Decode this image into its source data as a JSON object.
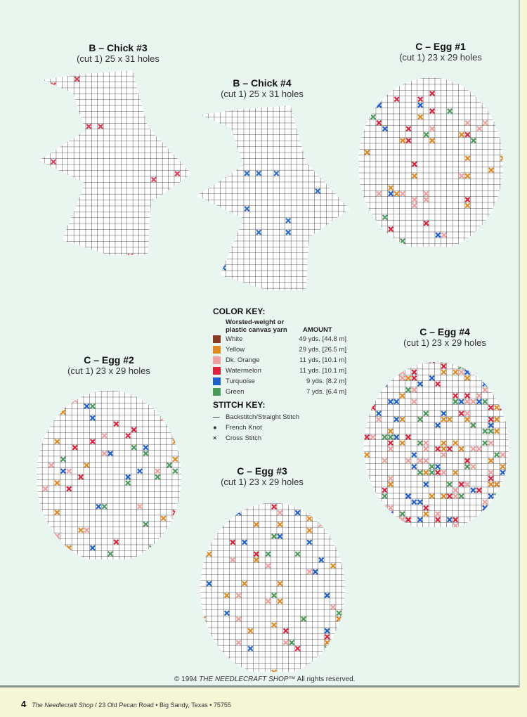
{
  "patterns": [
    {
      "id": "chick3",
      "title": "B – Chick #3",
      "subtitle": "(cut 1) 25 x 31 holes",
      "shape": "chick",
      "accent": "#e0405a"
    },
    {
      "id": "chick4",
      "title": "B – Chick #4",
      "subtitle": "(cut 1) 25 x 31 holes",
      "shape": "chick",
      "accent": "#2a6fc9"
    },
    {
      "id": "egg1",
      "title": "C – Egg #1",
      "subtitle": "(cut 1) 23 x 29 holes",
      "shape": "egg"
    },
    {
      "id": "egg2",
      "title": "C – Egg #2",
      "subtitle": "(cut 1) 23 x 29 holes",
      "shape": "egg"
    },
    {
      "id": "egg4",
      "title": "C – Egg #4",
      "subtitle": "(cut 1) 23 x 29 holes",
      "shape": "egg"
    },
    {
      "id": "egg3",
      "title": "C – Egg #3",
      "subtitle": "(cut 1) 23 x 29 holes",
      "shape": "egg"
    }
  ],
  "color_key": {
    "title": "COLOR KEY:",
    "yarn_header": "Worsted-weight or plastic canvas yarn",
    "amount_header": "AMOUNT",
    "items": [
      {
        "name": "White",
        "amount": "49 yds. [44.8 m]",
        "color": "#8b3a22"
      },
      {
        "name": "Yellow",
        "amount": "29 yds. [26.5 m]",
        "color": "#e38a1e"
      },
      {
        "name": "Dk. Orange",
        "amount": "11 yds. [10.1 m]",
        "color": "#f0a0a0"
      },
      {
        "name": "Watermelon",
        "amount": "11 yds. [10.1 m]",
        "color": "#e0203a"
      },
      {
        "name": "Turquoise",
        "amount": "9 yds. [8.2 m]",
        "color": "#1e5fd0"
      },
      {
        "name": "Green",
        "amount": "7 yds. [6.4 m]",
        "color": "#4a9a5a"
      }
    ]
  },
  "stitch_key": {
    "title": "STITCH KEY:",
    "items": [
      {
        "symbol": "—",
        "name": "Backstitch/Straight Stitch"
      },
      {
        "symbol": "●",
        "name": "French Knot"
      },
      {
        "symbol": "×",
        "name": "Cross Stitch"
      }
    ]
  },
  "copyright": {
    "prefix": "© 1994 ",
    "brand": "THE NEEDLECRAFT SHOP™",
    "suffix": " All rights reserved."
  },
  "footer": {
    "page": "4",
    "shop": "The Needlecraft Shop",
    "address": " / 23 Old Pecan Road • Big Sandy, Texas • 75755"
  }
}
